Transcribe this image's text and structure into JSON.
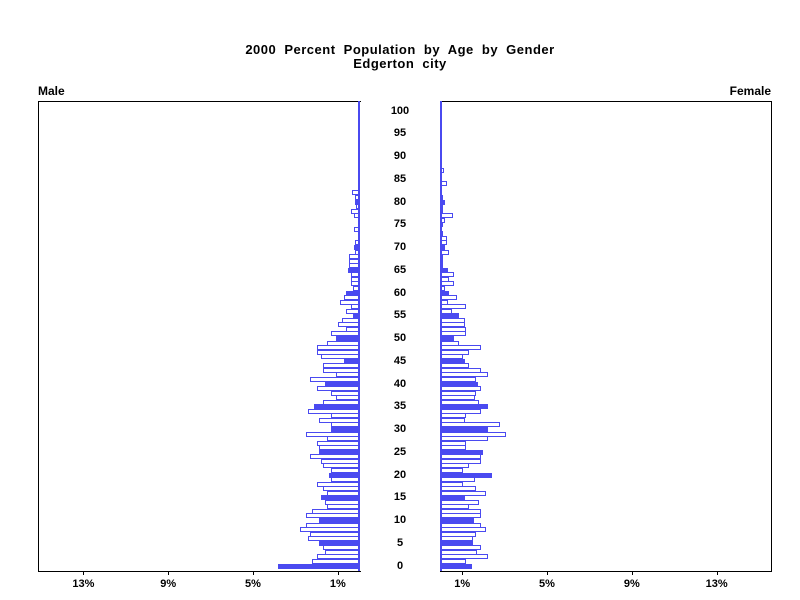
{
  "title": {
    "line1": "2000 Percent Population by Age by Gender",
    "line2": "Edgerton city"
  },
  "panels": {
    "male_label": "Male",
    "female_label": "Female"
  },
  "axes": {
    "age_tick_labels": [
      "0",
      "5",
      "10",
      "15",
      "20",
      "25",
      "30",
      "35",
      "40",
      "45",
      "50",
      "55",
      "60",
      "65",
      "70",
      "75",
      "80",
      "85",
      "90",
      "95",
      "100"
    ],
    "male_pct_tick_labels": [
      "13%",
      "9%",
      "5%",
      "1%"
    ],
    "female_pct_tick_labels": [
      "1%",
      "5%",
      "9%",
      "13%"
    ]
  },
  "colors": {
    "bar_blue": "#4a4af0",
    "axis_black": "#000000",
    "background": "#ffffff"
  },
  "chart_data": {
    "type": "bar",
    "subtype": "population-pyramid",
    "title": "2000 Percent Population by Age by Gender",
    "subtitle": "Edgerton city",
    "unit": "percent of population",
    "age_min": 0,
    "age_max": 100,
    "age_axis_tick_step": 5,
    "pct_axis_ticks": [
      1,
      5,
      9,
      13
    ],
    "xlim_pct": [
      0,
      15.2
    ],
    "highlight_rule": "ages that are multiples of 5 are drawn as solid blue bars; other ages are white bars with blue outline",
    "series": [
      {
        "name": "Male",
        "direction": "left",
        "values": [
          3.8,
          2.2,
          2.0,
          1.6,
          1.7,
          1.9,
          2.4,
          2.3,
          2.8,
          2.5,
          1.9,
          2.5,
          2.2,
          1.5,
          1.6,
          1.8,
          1.5,
          1.7,
          2.0,
          1.3,
          1.4,
          1.3,
          1.7,
          1.8,
          2.3,
          1.9,
          1.9,
          2.0,
          1.5,
          2.5,
          1.3,
          1.3,
          1.9,
          1.3,
          2.4,
          2.1,
          1.7,
          1.1,
          1.3,
          2.0,
          1.6,
          2.3,
          1.1,
          1.7,
          1.7,
          0.7,
          1.8,
          2.0,
          2.0,
          1.5,
          1.1,
          1.3,
          0.6,
          1.0,
          0.8,
          0.3,
          0.6,
          0.4,
          0.9,
          0.7,
          0.6,
          0.3,
          0.4,
          0.4,
          0.4,
          0.5,
          0.45,
          0.45,
          0.45,
          0.2,
          0.25,
          0.2,
          0,
          0,
          0.25,
          0,
          0,
          0.25,
          0.4,
          0.15,
          0.2,
          0.2,
          0.35,
          0,
          0,
          0,
          0,
          0,
          0,
          0,
          0,
          0,
          0,
          0,
          0,
          0,
          0,
          0,
          0,
          0,
          0
        ]
      },
      {
        "name": "Female",
        "direction": "right",
        "values": [
          1.45,
          1.2,
          2.2,
          1.7,
          1.9,
          1.5,
          1.5,
          1.65,
          2.1,
          1.9,
          1.55,
          1.9,
          1.9,
          1.3,
          1.8,
          1.15,
          2.1,
          1.65,
          1.05,
          1.6,
          2.4,
          1.05,
          1.3,
          1.9,
          1.9,
          2.0,
          1.2,
          1.2,
          2.2,
          3.05,
          2.2,
          2.8,
          1.15,
          1.2,
          1.9,
          2.2,
          1.8,
          1.6,
          1.65,
          1.9,
          1.75,
          1.65,
          2.2,
          1.9,
          1.3,
          1.15,
          1.05,
          1.3,
          1.9,
          0.85,
          0.6,
          1.2,
          1.2,
          1.15,
          1.15,
          0.85,
          0.5,
          1.2,
          0.35,
          0.75,
          0.4,
          0.2,
          0.6,
          0.4,
          0.6,
          0.35,
          0.1,
          0.1,
          0.1,
          0.4,
          0.2,
          0.3,
          0.3,
          0.1,
          0,
          0.1,
          0.2,
          0.55,
          0.1,
          0.05,
          0.2,
          0.1,
          0,
          0,
          0.3,
          0,
          0,
          0.15,
          0,
          0,
          0,
          0,
          0,
          0,
          0,
          0,
          0,
          0,
          0,
          0,
          0
        ]
      }
    ]
  }
}
